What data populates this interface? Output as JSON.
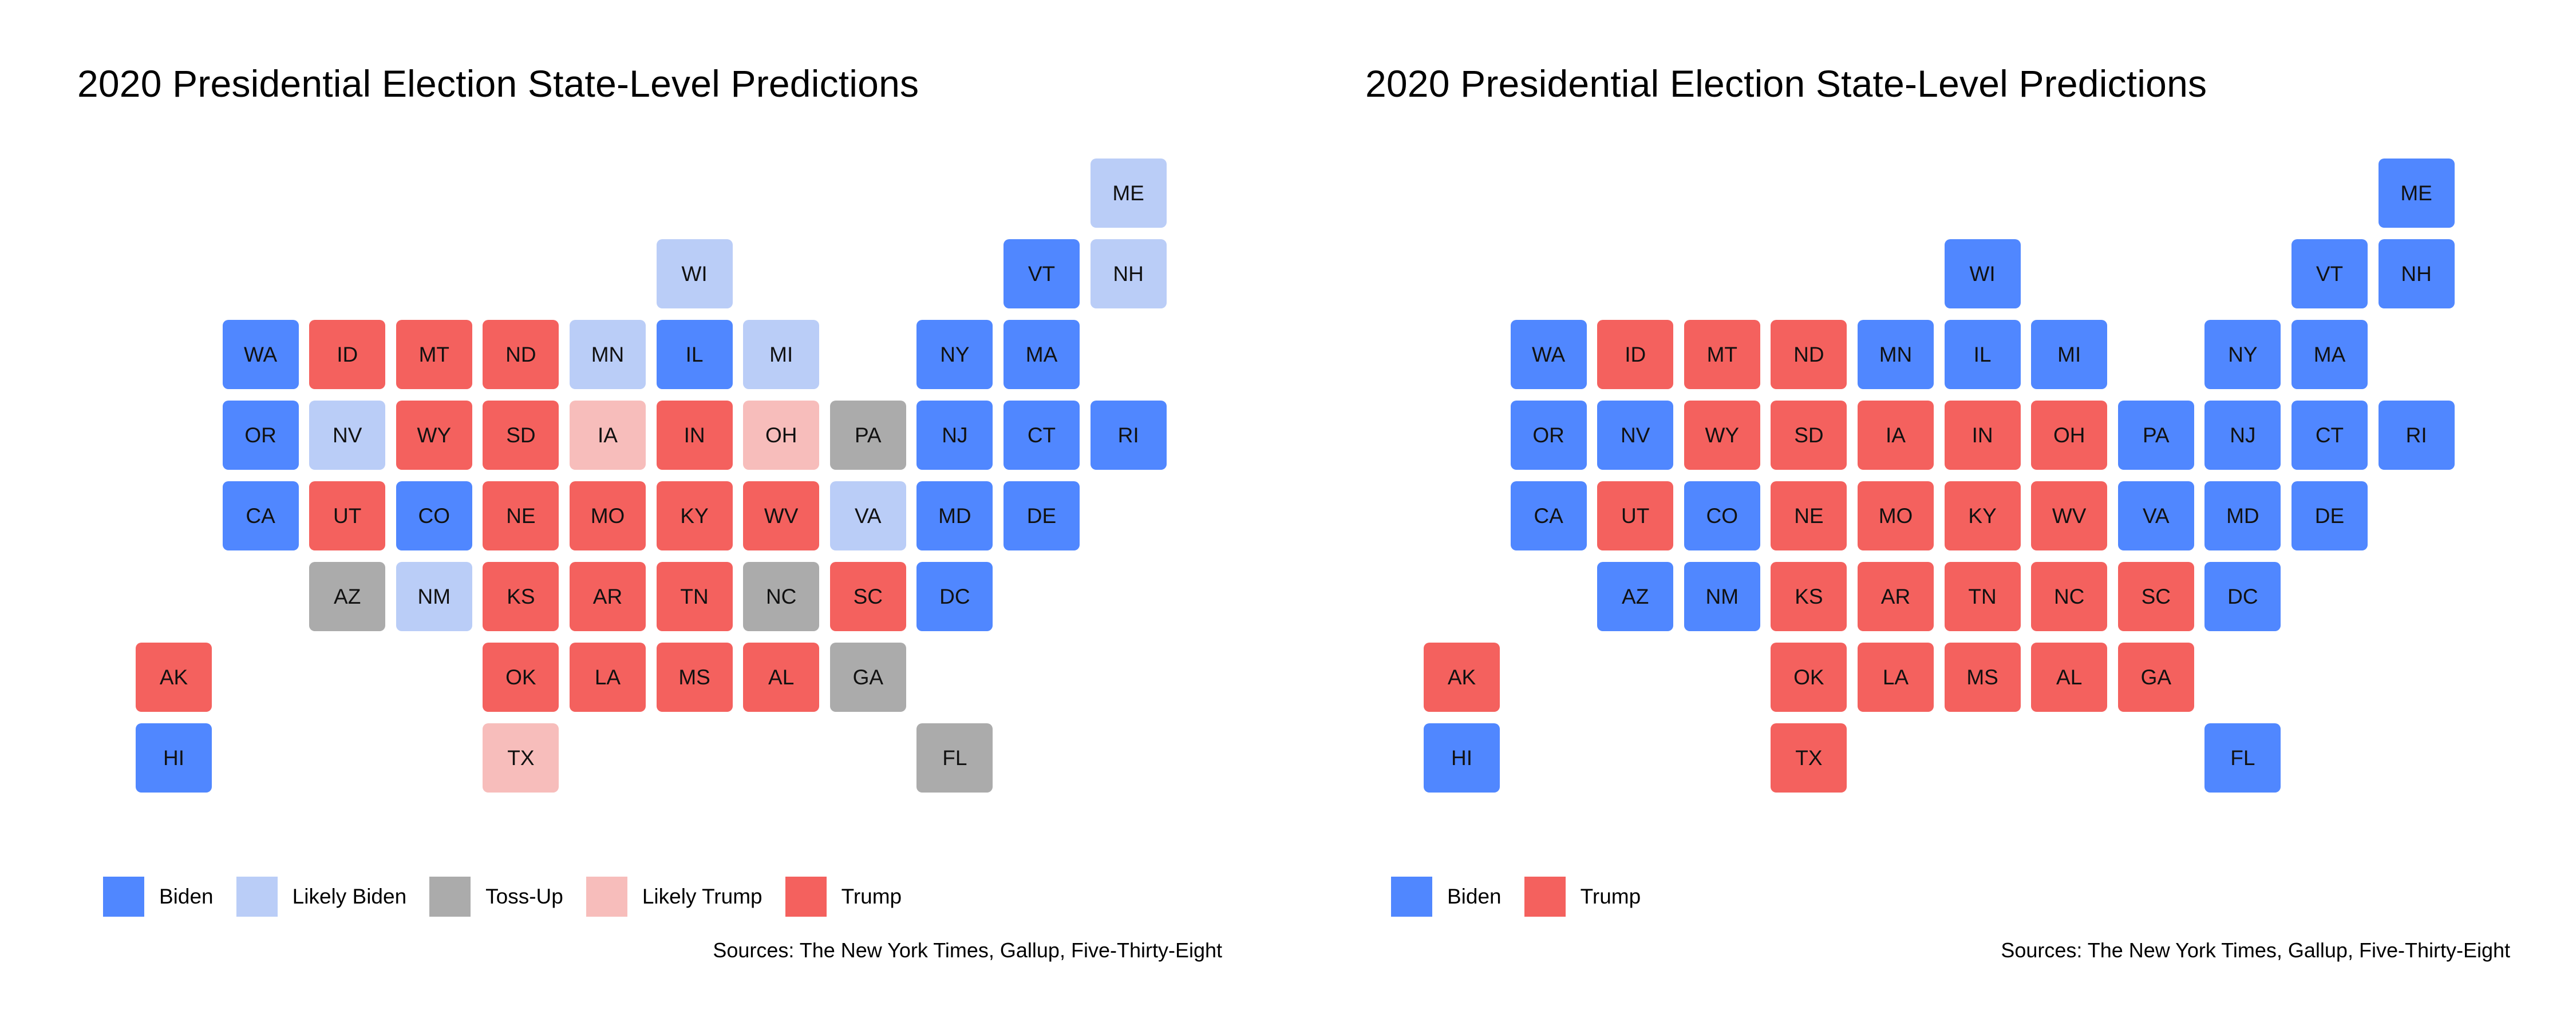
{
  "colors": {
    "Biden": "#5087FF",
    "Likely Biden": "#BACDF7",
    "Toss-Up": "#ABABAB",
    "Likely Trump": "#F7BDBB",
    "Trump": "#F4615E"
  },
  "chart_data": [
    {
      "type": "heatmap",
      "title": "2020 Presidential Election State-Level Predictions",
      "source": "Sources: The New York Times, Gallup, Five-Thirty-Eight",
      "legend": {
        "position": "bottom-left",
        "items": [
          "Biden",
          "Likely Biden",
          "Toss-Up",
          "Likely Trump",
          "Trump"
        ]
      },
      "states": [
        {
          "code": "ME",
          "col": 11,
          "row": 0,
          "category": "Likely Biden"
        },
        {
          "code": "WI",
          "col": 6,
          "row": 1,
          "category": "Likely Biden"
        },
        {
          "code": "VT",
          "col": 10,
          "row": 1,
          "category": "Biden"
        },
        {
          "code": "NH",
          "col": 11,
          "row": 1,
          "category": "Likely Biden"
        },
        {
          "code": "WA",
          "col": 1,
          "row": 2,
          "category": "Biden"
        },
        {
          "code": "ID",
          "col": 2,
          "row": 2,
          "category": "Trump"
        },
        {
          "code": "MT",
          "col": 3,
          "row": 2,
          "category": "Trump"
        },
        {
          "code": "ND",
          "col": 4,
          "row": 2,
          "category": "Trump"
        },
        {
          "code": "MN",
          "col": 5,
          "row": 2,
          "category": "Likely Biden"
        },
        {
          "code": "IL",
          "col": 6,
          "row": 2,
          "category": "Biden"
        },
        {
          "code": "MI",
          "col": 7,
          "row": 2,
          "category": "Likely Biden"
        },
        {
          "code": "NY",
          "col": 9,
          "row": 2,
          "category": "Biden"
        },
        {
          "code": "MA",
          "col": 10,
          "row": 2,
          "category": "Biden"
        },
        {
          "code": "OR",
          "col": 1,
          "row": 3,
          "category": "Biden"
        },
        {
          "code": "NV",
          "col": 2,
          "row": 3,
          "category": "Likely Biden"
        },
        {
          "code": "WY",
          "col": 3,
          "row": 3,
          "category": "Trump"
        },
        {
          "code": "SD",
          "col": 4,
          "row": 3,
          "category": "Trump"
        },
        {
          "code": "IA",
          "col": 5,
          "row": 3,
          "category": "Likely Trump"
        },
        {
          "code": "IN",
          "col": 6,
          "row": 3,
          "category": "Trump"
        },
        {
          "code": "OH",
          "col": 7,
          "row": 3,
          "category": "Likely Trump"
        },
        {
          "code": "PA",
          "col": 8,
          "row": 3,
          "category": "Toss-Up"
        },
        {
          "code": "NJ",
          "col": 9,
          "row": 3,
          "category": "Biden"
        },
        {
          "code": "CT",
          "col": 10,
          "row": 3,
          "category": "Biden"
        },
        {
          "code": "RI",
          "col": 11,
          "row": 3,
          "category": "Biden"
        },
        {
          "code": "CA",
          "col": 1,
          "row": 4,
          "category": "Biden"
        },
        {
          "code": "UT",
          "col": 2,
          "row": 4,
          "category": "Trump"
        },
        {
          "code": "CO",
          "col": 3,
          "row": 4,
          "category": "Biden"
        },
        {
          "code": "NE",
          "col": 4,
          "row": 4,
          "category": "Trump"
        },
        {
          "code": "MO",
          "col": 5,
          "row": 4,
          "category": "Trump"
        },
        {
          "code": "KY",
          "col": 6,
          "row": 4,
          "category": "Trump"
        },
        {
          "code": "WV",
          "col": 7,
          "row": 4,
          "category": "Trump"
        },
        {
          "code": "VA",
          "col": 8,
          "row": 4,
          "category": "Likely Biden"
        },
        {
          "code": "MD",
          "col": 9,
          "row": 4,
          "category": "Biden"
        },
        {
          "code": "DE",
          "col": 10,
          "row": 4,
          "category": "Biden"
        },
        {
          "code": "AZ",
          "col": 2,
          "row": 5,
          "category": "Toss-Up"
        },
        {
          "code": "NM",
          "col": 3,
          "row": 5,
          "category": "Likely Biden"
        },
        {
          "code": "KS",
          "col": 4,
          "row": 5,
          "category": "Trump"
        },
        {
          "code": "AR",
          "col": 5,
          "row": 5,
          "category": "Trump"
        },
        {
          "code": "TN",
          "col": 6,
          "row": 5,
          "category": "Trump"
        },
        {
          "code": "NC",
          "col": 7,
          "row": 5,
          "category": "Toss-Up"
        },
        {
          "code": "SC",
          "col": 8,
          "row": 5,
          "category": "Trump"
        },
        {
          "code": "DC",
          "col": 9,
          "row": 5,
          "category": "Biden"
        },
        {
          "code": "AK",
          "col": 0,
          "row": 6,
          "category": "Trump"
        },
        {
          "code": "OK",
          "col": 4,
          "row": 6,
          "category": "Trump"
        },
        {
          "code": "LA",
          "col": 5,
          "row": 6,
          "category": "Trump"
        },
        {
          "code": "MS",
          "col": 6,
          "row": 6,
          "category": "Trump"
        },
        {
          "code": "AL",
          "col": 7,
          "row": 6,
          "category": "Trump"
        },
        {
          "code": "GA",
          "col": 8,
          "row": 6,
          "category": "Toss-Up"
        },
        {
          "code": "HI",
          "col": 0,
          "row": 7,
          "category": "Biden"
        },
        {
          "code": "TX",
          "col": 4,
          "row": 7,
          "category": "Likely Trump"
        },
        {
          "code": "FL",
          "col": 9,
          "row": 7,
          "category": "Toss-Up"
        }
      ]
    },
    {
      "type": "heatmap",
      "title": "2020 Presidential Election State-Level Predictions",
      "source": "Sources: The New York Times, Gallup, Five-Thirty-Eight",
      "legend": {
        "position": "bottom-left",
        "items": [
          "Biden",
          "Trump"
        ]
      },
      "states": [
        {
          "code": "ME",
          "col": 11,
          "row": 0,
          "category": "Biden"
        },
        {
          "code": "WI",
          "col": 6,
          "row": 1,
          "category": "Biden"
        },
        {
          "code": "VT",
          "col": 10,
          "row": 1,
          "category": "Biden"
        },
        {
          "code": "NH",
          "col": 11,
          "row": 1,
          "category": "Biden"
        },
        {
          "code": "WA",
          "col": 1,
          "row": 2,
          "category": "Biden"
        },
        {
          "code": "ID",
          "col": 2,
          "row": 2,
          "category": "Trump"
        },
        {
          "code": "MT",
          "col": 3,
          "row": 2,
          "category": "Trump"
        },
        {
          "code": "ND",
          "col": 4,
          "row": 2,
          "category": "Trump"
        },
        {
          "code": "MN",
          "col": 5,
          "row": 2,
          "category": "Biden"
        },
        {
          "code": "IL",
          "col": 6,
          "row": 2,
          "category": "Biden"
        },
        {
          "code": "MI",
          "col": 7,
          "row": 2,
          "category": "Biden"
        },
        {
          "code": "NY",
          "col": 9,
          "row": 2,
          "category": "Biden"
        },
        {
          "code": "MA",
          "col": 10,
          "row": 2,
          "category": "Biden"
        },
        {
          "code": "OR",
          "col": 1,
          "row": 3,
          "category": "Biden"
        },
        {
          "code": "NV",
          "col": 2,
          "row": 3,
          "category": "Biden"
        },
        {
          "code": "WY",
          "col": 3,
          "row": 3,
          "category": "Trump"
        },
        {
          "code": "SD",
          "col": 4,
          "row": 3,
          "category": "Trump"
        },
        {
          "code": "IA",
          "col": 5,
          "row": 3,
          "category": "Trump"
        },
        {
          "code": "IN",
          "col": 6,
          "row": 3,
          "category": "Trump"
        },
        {
          "code": "OH",
          "col": 7,
          "row": 3,
          "category": "Trump"
        },
        {
          "code": "PA",
          "col": 8,
          "row": 3,
          "category": "Biden"
        },
        {
          "code": "NJ",
          "col": 9,
          "row": 3,
          "category": "Biden"
        },
        {
          "code": "CT",
          "col": 10,
          "row": 3,
          "category": "Biden"
        },
        {
          "code": "RI",
          "col": 11,
          "row": 3,
          "category": "Biden"
        },
        {
          "code": "CA",
          "col": 1,
          "row": 4,
          "category": "Biden"
        },
        {
          "code": "UT",
          "col": 2,
          "row": 4,
          "category": "Trump"
        },
        {
          "code": "CO",
          "col": 3,
          "row": 4,
          "category": "Biden"
        },
        {
          "code": "NE",
          "col": 4,
          "row": 4,
          "category": "Trump"
        },
        {
          "code": "MO",
          "col": 5,
          "row": 4,
          "category": "Trump"
        },
        {
          "code": "KY",
          "col": 6,
          "row": 4,
          "category": "Trump"
        },
        {
          "code": "WV",
          "col": 7,
          "row": 4,
          "category": "Trump"
        },
        {
          "code": "VA",
          "col": 8,
          "row": 4,
          "category": "Biden"
        },
        {
          "code": "MD",
          "col": 9,
          "row": 4,
          "category": "Biden"
        },
        {
          "code": "DE",
          "col": 10,
          "row": 4,
          "category": "Biden"
        },
        {
          "code": "AZ",
          "col": 2,
          "row": 5,
          "category": "Biden"
        },
        {
          "code": "NM",
          "col": 3,
          "row": 5,
          "category": "Biden"
        },
        {
          "code": "KS",
          "col": 4,
          "row": 5,
          "category": "Trump"
        },
        {
          "code": "AR",
          "col": 5,
          "row": 5,
          "category": "Trump"
        },
        {
          "code": "TN",
          "col": 6,
          "row": 5,
          "category": "Trump"
        },
        {
          "code": "NC",
          "col": 7,
          "row": 5,
          "category": "Trump"
        },
        {
          "code": "SC",
          "col": 8,
          "row": 5,
          "category": "Trump"
        },
        {
          "code": "DC",
          "col": 9,
          "row": 5,
          "category": "Biden"
        },
        {
          "code": "AK",
          "col": 0,
          "row": 6,
          "category": "Trump"
        },
        {
          "code": "OK",
          "col": 4,
          "row": 6,
          "category": "Trump"
        },
        {
          "code": "LA",
          "col": 5,
          "row": 6,
          "category": "Trump"
        },
        {
          "code": "MS",
          "col": 6,
          "row": 6,
          "category": "Trump"
        },
        {
          "code": "AL",
          "col": 7,
          "row": 6,
          "category": "Trump"
        },
        {
          "code": "GA",
          "col": 8,
          "row": 6,
          "category": "Trump"
        },
        {
          "code": "HI",
          "col": 0,
          "row": 7,
          "category": "Biden"
        },
        {
          "code": "TX",
          "col": 4,
          "row": 7,
          "category": "Trump"
        },
        {
          "code": "FL",
          "col": 9,
          "row": 7,
          "category": "Biden"
        }
      ]
    }
  ]
}
